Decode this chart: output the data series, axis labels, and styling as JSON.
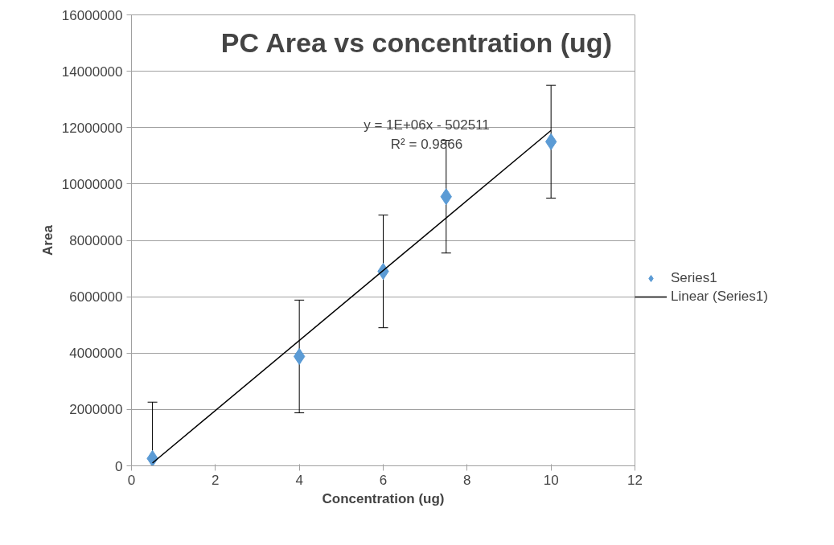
{
  "chart_data": {
    "type": "scatter",
    "title": "PC Area vs concentration (ug)",
    "xlabel": "Concentration (ug)",
    "ylabel": "Area",
    "series": [
      {
        "name": "Series1",
        "color": "#5b9bd5",
        "x": [
          0.5,
          4,
          6,
          7.5,
          10
        ],
        "values": [
          260000,
          3880000,
          6900000,
          9550000,
          11500000
        ],
        "errors": [
          [
            0,
            2260000
          ],
          2000000,
          2000000,
          2000000,
          2000000
        ],
        "marker": "diamond"
      },
      {
        "name": "Linear (Series1)",
        "type": "line",
        "color": "#000000",
        "x": [
          0.5,
          10
        ],
        "values": [
          100000,
          11900000
        ],
        "marker": "none",
        "line_style": "solid"
      }
    ],
    "annotations": [
      "y = 1E+06x - 502511\nR² = 0.9866"
    ],
    "xlim": [
      0,
      12
    ],
    "xticks": [
      0,
      2,
      4,
      6,
      8,
      10,
      12
    ],
    "ylim": [
      0,
      16000000
    ],
    "yticks": [
      0,
      2000000,
      4000000,
      6000000,
      8000000,
      10000000,
      12000000,
      14000000,
      16000000
    ],
    "grid": "y",
    "legend": "right"
  }
}
